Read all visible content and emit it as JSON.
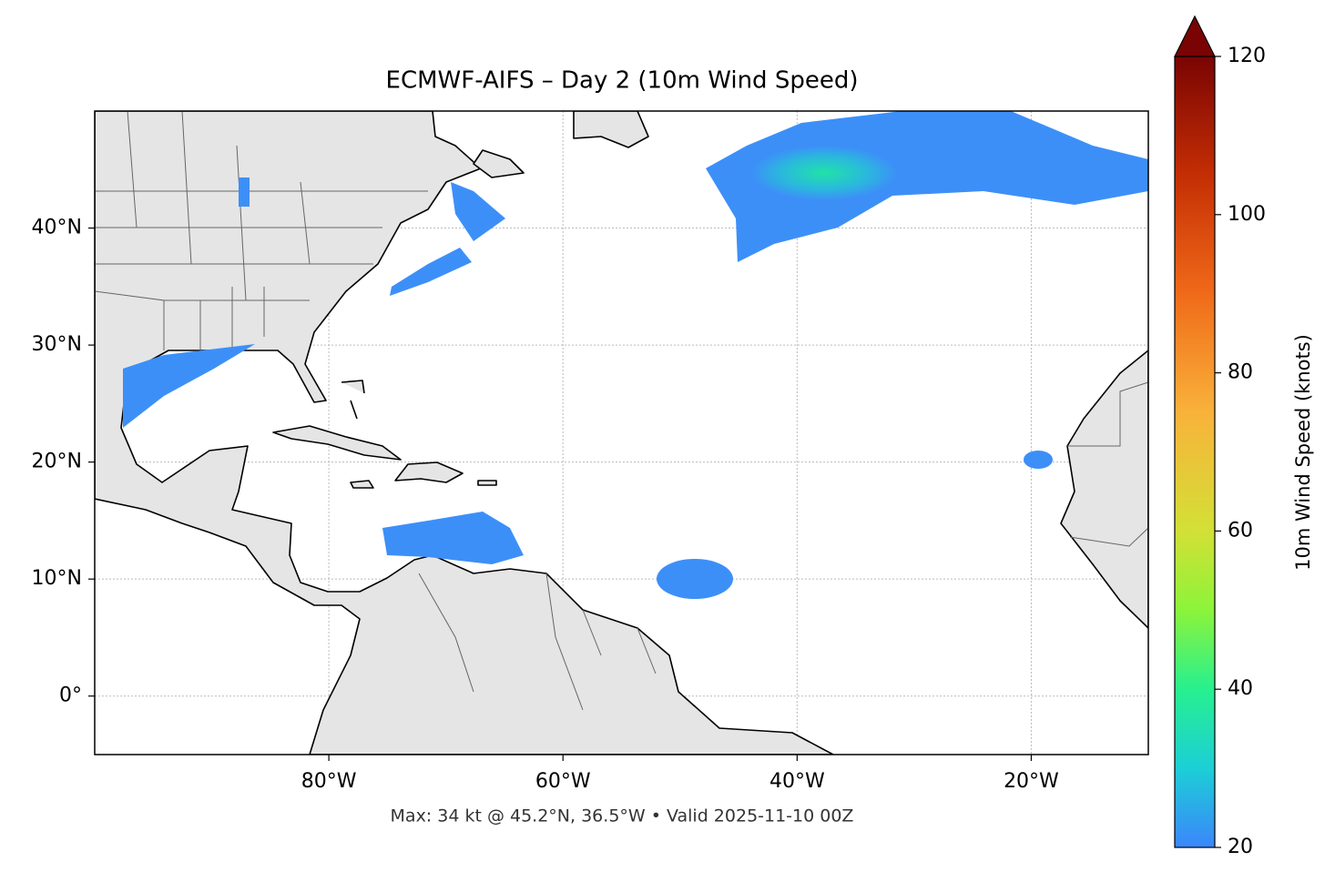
{
  "map": {
    "title": "ECMWF-AIFS – Day 2 (10m Wind Speed)",
    "xlim": [
      -100,
      -10
    ],
    "ylim": [
      -5,
      50
    ],
    "xticks": [
      {
        "value": -80,
        "label": "80°W"
      },
      {
        "value": -60,
        "label": "60°W"
      },
      {
        "value": -40,
        "label": "40°W"
      },
      {
        "value": -20,
        "label": "20°W"
      }
    ],
    "yticks": [
      {
        "value": 0,
        "label": "0°"
      },
      {
        "value": 10,
        "label": "10°N"
      },
      {
        "value": 20,
        "label": "20°N"
      },
      {
        "value": 30,
        "label": "30°N"
      },
      {
        "value": 40,
        "label": "40°N"
      }
    ],
    "grid": true,
    "footer": "Max: 34 kt @ 45.2°N, 36.5°W • Valid 2025-11-10 00Z",
    "colorbar": {
      "label": "10m Wind Speed (knots)",
      "lim": [
        20,
        120
      ],
      "ticks": [
        20,
        40,
        60,
        80,
        100,
        120
      ]
    }
  }
}
